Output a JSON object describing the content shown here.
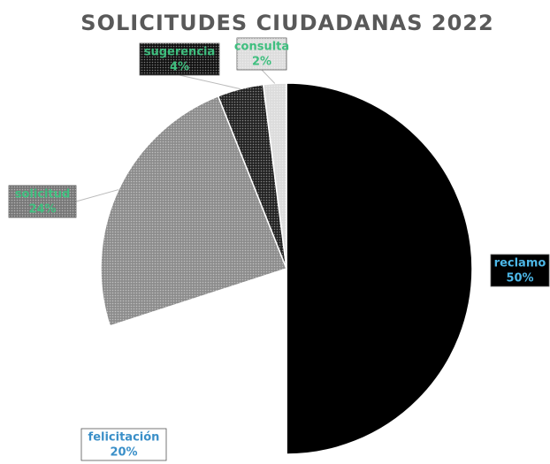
{
  "chart_data": {
    "type": "pie",
    "title": "SOLICITUDES CIUDADANAS 2022",
    "categories": [
      "reclamo",
      "felicitación",
      "solicitud",
      "sugerencia",
      "consulta"
    ],
    "values": [
      50,
      20,
      24,
      4,
      2
    ],
    "value_labels": [
      "50%",
      "20%",
      "24%",
      "4%",
      "2%"
    ],
    "colors": [
      "#000000",
      "#ffffff",
      "#8c8c8c",
      "#222222",
      "#dcdcdc"
    ],
    "label_colors": [
      "#4db8e8",
      "#3a8fc8",
      "#3fbf7f",
      "#3fbf7f",
      "#3fbf7f"
    ]
  }
}
